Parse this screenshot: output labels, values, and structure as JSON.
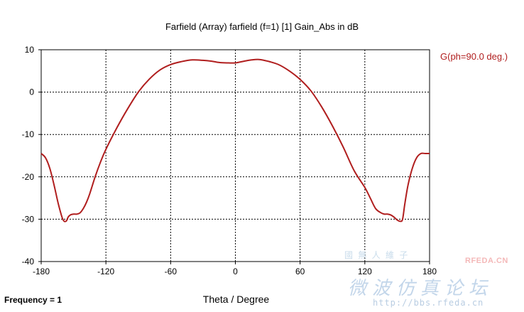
{
  "chart_data": {
    "type": "line",
    "title": "Farfield (Array) farfield (f=1) [1] Gain_Abs in dB",
    "xlabel": "Theta / Degree",
    "ylabel": "",
    "xlim": [
      -180,
      180
    ],
    "ylim": [
      -40,
      10
    ],
    "xticks": [
      -180,
      -120,
      -60,
      0,
      60,
      120,
      180
    ],
    "yticks": [
      10,
      0,
      -10,
      -20,
      -30,
      -40
    ],
    "grid": true,
    "legend_position": "top-right outside",
    "series": [
      {
        "name": "G(ph=90.0 deg.)",
        "color": "#b01e1e",
        "x": [
          -180,
          -176,
          -172,
          -168,
          -164,
          -160,
          -157,
          -155,
          -153,
          -150,
          -147,
          -144,
          -141,
          -138,
          -135,
          -130,
          -125,
          -120,
          -110,
          -100,
          -90,
          -80,
          -70,
          -60,
          -50,
          -40,
          -30,
          -22,
          -15,
          -8,
          0,
          8,
          15,
          22,
          30,
          40,
          50,
          60,
          70,
          80,
          90,
          100,
          110,
          120,
          125,
          130,
          135,
          138,
          141,
          144,
          147,
          150,
          153,
          155,
          157,
          160,
          164,
          168,
          172,
          176,
          180
        ],
        "y": [
          -14.5,
          -15.5,
          -18,
          -22,
          -26.5,
          -30,
          -30.5,
          -29.5,
          -29,
          -28.8,
          -28.8,
          -28.5,
          -27.5,
          -26,
          -24,
          -20,
          -16.5,
          -13.5,
          -8.5,
          -4,
          0,
          3,
          5.2,
          6.5,
          7.2,
          7.6,
          7.5,
          7.3,
          7,
          6.9,
          6.9,
          7.3,
          7.6,
          7.7,
          7.3,
          6.5,
          5,
          3,
          0.3,
          -3.5,
          -8,
          -13,
          -18.5,
          -22.5,
          -25,
          -27.5,
          -28.5,
          -28.8,
          -28.8,
          -29,
          -29.5,
          -30.2,
          -30.5,
          -30,
          -26.5,
          -22,
          -18,
          -15.5,
          -14.5,
          -14.5,
          -14.5
        ]
      }
    ]
  },
  "footer": {
    "frequency_label": "Frequency = 1"
  },
  "watermark": {
    "logo_text": "RFEDA.CN",
    "chinese_top": "國 無 人 維 子",
    "chinese_big": "微波仿真论坛",
    "url": "http://bbs.rfeda.cn"
  }
}
